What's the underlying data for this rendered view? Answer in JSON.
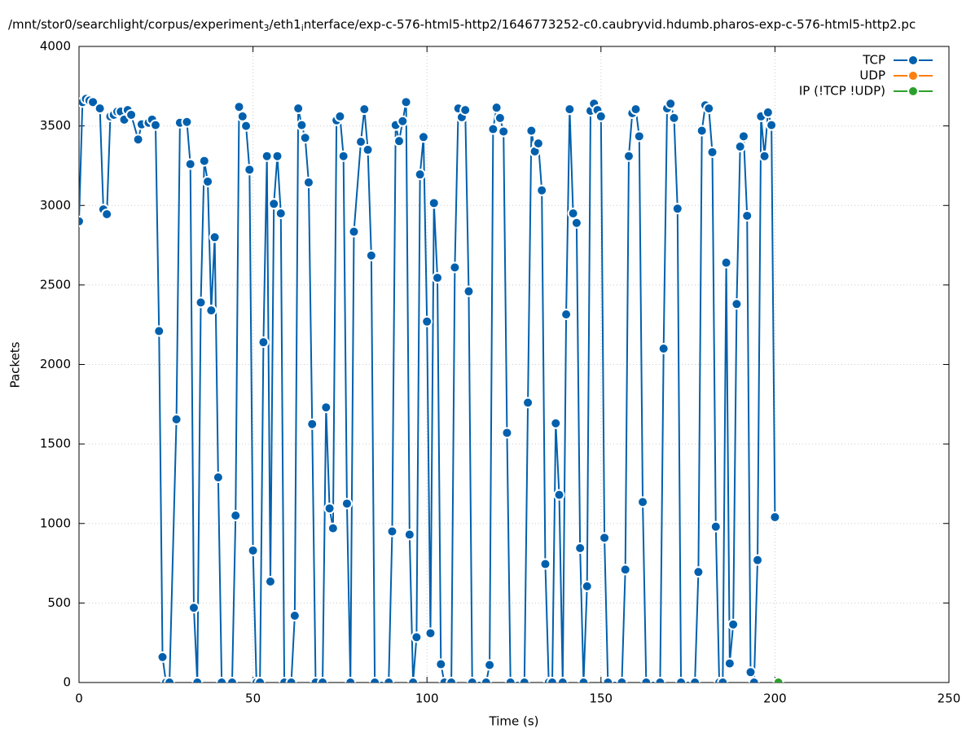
{
  "chart_data": {
    "type": "line",
    "title_parts": [
      "/mnt/stor0/searchlight/corpus/experiment",
      "3",
      "/eth1",
      "i",
      "nterface/exp-c-576-html5-http2/1646773252-c0.caubryvid.hdumb.pharos-exp-c-576-html5-http2.pc"
    ],
    "x_label": "Time (s)",
    "y_label": "Packets",
    "xlim": [
      0,
      250
    ],
    "xticks": [
      0,
      50,
      100,
      150,
      200,
      250
    ],
    "ylim": [
      0,
      4000
    ],
    "yticks": [
      0,
      500,
      1000,
      1500,
      2000,
      2500,
      3000,
      3500,
      4000
    ],
    "grid": true,
    "legend": "top-right",
    "series": [
      {
        "name": "TCP",
        "color": "#0060ad",
        "x": [
          0,
          1,
          2,
          3,
          4,
          6,
          7,
          8,
          9,
          10,
          11,
          12,
          13,
          14,
          15,
          17,
          18,
          20,
          21,
          22,
          23,
          24,
          25,
          26,
          28,
          29,
          31,
          32,
          33,
          34,
          35,
          36,
          37,
          38,
          39,
          40,
          41,
          44,
          45,
          46,
          47,
          48,
          49,
          50,
          51,
          52,
          53,
          54,
          55,
          56,
          57,
          58,
          59,
          61,
          62,
          63,
          64,
          65,
          66,
          67,
          68,
          70,
          71,
          72,
          73,
          74,
          75,
          76,
          77,
          78,
          79,
          81,
          82,
          83,
          84,
          85,
          89,
          90,
          91,
          92,
          93,
          94,
          95,
          96,
          97,
          98,
          99,
          100,
          101,
          102,
          103,
          104,
          105,
          107,
          108,
          109,
          110,
          111,
          112,
          113,
          117,
          118,
          119,
          120,
          121,
          122,
          123,
          124,
          128,
          129,
          130,
          131,
          132,
          133,
          134,
          135,
          136,
          137,
          138,
          139,
          140,
          141,
          142,
          143,
          144,
          145,
          146,
          147,
          148,
          149,
          150,
          151,
          152,
          156,
          157,
          158,
          159,
          160,
          161,
          162,
          163,
          167,
          168,
          169,
          170,
          171,
          172,
          173,
          177,
          178,
          179,
          180,
          181,
          182,
          183,
          184,
          185,
          186,
          187,
          188,
          189,
          190,
          191,
          192,
          193,
          194,
          195,
          196,
          197,
          198,
          199,
          200
        ],
        "values": [
          2900,
          3650,
          3670,
          3660,
          3650,
          3610,
          2975,
          2945,
          3560,
          3570,
          3590,
          3590,
          3540,
          3600,
          3570,
          3415,
          3510,
          3520,
          3540,
          3505,
          2210,
          160,
          0,
          0,
          1655,
          3520,
          3525,
          3260,
          470,
          0,
          2390,
          3280,
          3150,
          2340,
          2800,
          1290,
          0,
          0,
          1050,
          3620,
          3560,
          3500,
          3225,
          830,
          0,
          0,
          2140,
          3310,
          635,
          3010,
          3310,
          2950,
          0,
          0,
          420,
          3610,
          3505,
          3425,
          3145,
          1625,
          0,
          0,
          1730,
          1095,
          970,
          3535,
          3560,
          3310,
          1125,
          0,
          2835,
          3400,
          3605,
          3350,
          2685,
          0,
          0,
          950,
          3505,
          3405,
          3530,
          3650,
          930,
          0,
          285,
          3195,
          3430,
          2270,
          310,
          3015,
          2545,
          115,
          0,
          0,
          2610,
          3610,
          3555,
          3600,
          2460,
          0,
          0,
          110,
          3480,
          3615,
          3550,
          3465,
          1570,
          0,
          0,
          1760,
          3470,
          3340,
          3390,
          3095,
          745,
          0,
          0,
          1630,
          1180,
          0,
          2315,
          3605,
          2950,
          2890,
          845,
          0,
          605,
          3595,
          3640,
          3600,
          3560,
          910,
          0,
          0,
          710,
          3310,
          3580,
          3605,
          3435,
          1135,
          0,
          0,
          2100,
          3610,
          3640,
          3550,
          2980,
          0,
          0,
          695,
          3470,
          3630,
          3610,
          3335,
          980,
          0,
          0,
          2640,
          120,
          365,
          2380,
          3370,
          3435,
          2935,
          65,
          0,
          770,
          3560,
          3310,
          3585,
          3505,
          1040
        ]
      },
      {
        "name": "UDP",
        "color": "#ff7f0e",
        "x": [],
        "values": []
      },
      {
        "name": "IP (!TCP  !UDP)",
        "color": "#2ca02c",
        "x": [
          201
        ],
        "values": [
          0
        ]
      }
    ]
  }
}
